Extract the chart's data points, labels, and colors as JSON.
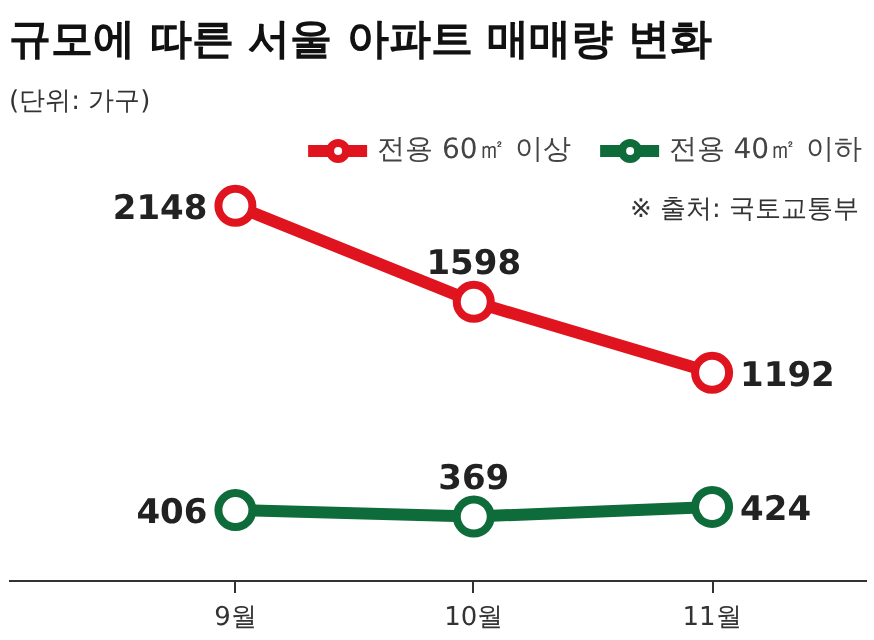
{
  "chart_data": {
    "type": "line",
    "title": "규모에 따른 서울 아파트 매매량 변화",
    "subtitle": "(단위: 가구)",
    "categories": [
      "9월",
      "10월",
      "11월"
    ],
    "series": [
      {
        "name": "전용 60㎡ 이상",
        "color": "#e0141e",
        "values": [
          2148,
          1598,
          1192
        ]
      },
      {
        "name": "전용 40㎡ 이하",
        "color": "#0e6b3a",
        "values": [
          406,
          369,
          424
        ]
      }
    ],
    "tick_labels": "x",
    "grid": false,
    "legend": "top right",
    "marker": "circle",
    "line_style": "solid",
    "data_labels": true,
    "annotations": [
      "※ 출처: 국토교통부"
    ]
  }
}
